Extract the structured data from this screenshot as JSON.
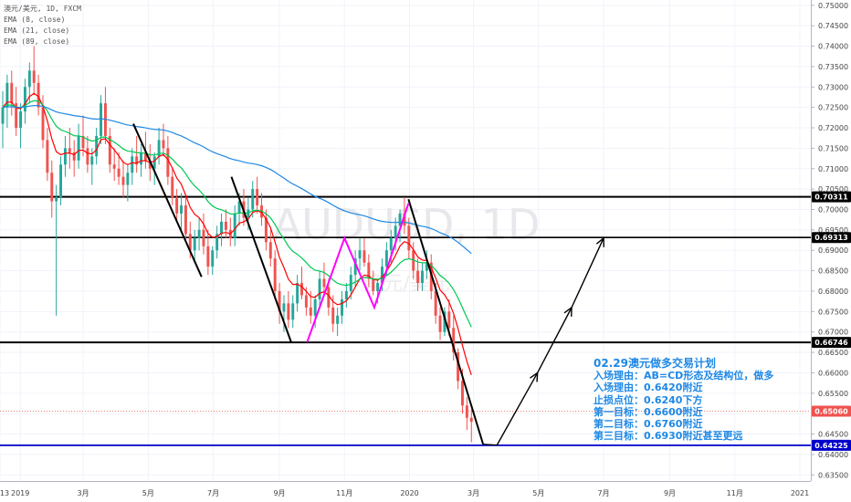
{
  "legend": {
    "symbol": "澳元/美元, 1D, FXCM",
    "ema1": "EMA (8, close)",
    "ema2": "EMA (21, close)",
    "ema3": "EMA (89, close)"
  },
  "watermark": {
    "main": "AUDUSD, 1D",
    "sub": "澳元/美元"
  },
  "plan": {
    "title": "02.29澳元做多交易计划",
    "lines": [
      "入场理由：AB=CD形态及结构位，做多",
      "入场理由：0.6420附近",
      "止损点位：0.6240下方",
      "第一目标：0.6600附近",
      "第二目标：0.6760附近",
      "第三目标：0.6930附近甚至更远"
    ]
  },
  "colors": {
    "up": "#26a69a",
    "down": "#ef5350",
    "ema8": "#ff0000",
    "ema21": "#00c853",
    "ema89": "#1e88e5",
    "pattern": "#ff00ff",
    "support": "#0000cc",
    "text_blue": "#1e88e5"
  },
  "chart_data": {
    "type": "candlestick",
    "ylim": [
      0.6335,
      0.7513
    ],
    "y_ticks": [
      "0.75000",
      "0.74500",
      "0.74000",
      "0.73500",
      "0.73000",
      "0.72500",
      "0.72000",
      "0.71500",
      "0.71000",
      "0.70500",
      "0.70000",
      "0.69500",
      "0.69000",
      "0.68500",
      "0.68000",
      "0.67500",
      "0.67000",
      "0.66500",
      "0.66000",
      "0.65500",
      "0.65000",
      "0.64500",
      "0.64000",
      "0.63500"
    ],
    "x_ticks": [
      "13",
      "2019",
      "3月",
      "5月",
      "7月",
      "9月",
      "11月",
      "2020",
      "3月",
      "5月",
      "7月",
      "9月",
      "11月",
      "2021"
    ],
    "horizontal_levels": [
      {
        "label": "0.70311",
        "value": 0.70311,
        "style": "black-thick"
      },
      {
        "label": "0.69313",
        "value": 0.69313,
        "style": "black"
      },
      {
        "label": "0.66746",
        "value": 0.66746,
        "style": "black-thick"
      },
      {
        "label": "0.65060",
        "value": 0.6506,
        "style": "red-dotted"
      },
      {
        "label": "0.64225",
        "value": 0.64225,
        "style": "blue"
      }
    ],
    "trend_lines": [
      {
        "from": [
          "2019-04-17",
          0.721
        ],
        "to": [
          "2019-06-20",
          0.6835
        ]
      },
      {
        "from": [
          "2019-07-18",
          0.708
        ],
        "to": [
          "2019-09-12",
          0.6675
        ]
      },
      {
        "from": [
          "2019-12-31",
          0.7025
        ],
        "to": [
          "2020-03-10",
          0.6425
        ]
      }
    ],
    "pattern_lines": [
      {
        "points": [
          [
            "2019-09-27",
            0.6675
          ],
          [
            "2019-11-01",
            0.693
          ],
          [
            "2019-11-29",
            0.676
          ],
          [
            "2019-12-31",
            0.7015
          ]
        ]
      }
    ],
    "projection": {
      "points": [
        [
          "2020-03-23",
          0.6423
        ],
        [
          "2020-04-30",
          0.66
        ],
        [
          "2020-06-01",
          0.676
        ],
        [
          "2020-07-01",
          0.693
        ]
      ]
    },
    "candles": [
      [
        0.721,
        0.729,
        0.715,
        0.725
      ],
      [
        0.725,
        0.733,
        0.72,
        0.731
      ],
      [
        0.731,
        0.734,
        0.723,
        0.726
      ],
      [
        0.726,
        0.73,
        0.718,
        0.72
      ],
      [
        0.72,
        0.726,
        0.715,
        0.724
      ],
      [
        0.724,
        0.732,
        0.721,
        0.73
      ],
      [
        0.73,
        0.736,
        0.726,
        0.734
      ],
      [
        0.734,
        0.74,
        0.728,
        0.731
      ],
      [
        0.731,
        0.733,
        0.723,
        0.725
      ],
      [
        0.725,
        0.728,
        0.715,
        0.717
      ],
      [
        0.717,
        0.72,
        0.707,
        0.709
      ],
      [
        0.709,
        0.712,
        0.698,
        0.702
      ],
      [
        0.702,
        0.706,
        0.674,
        0.703
      ],
      [
        0.703,
        0.713,
        0.701,
        0.711
      ],
      [
        0.711,
        0.718,
        0.708,
        0.715
      ],
      [
        0.715,
        0.72,
        0.71,
        0.714
      ],
      [
        0.714,
        0.717,
        0.708,
        0.712
      ],
      [
        0.712,
        0.721,
        0.71,
        0.718
      ],
      [
        0.718,
        0.723,
        0.713,
        0.715
      ],
      [
        0.715,
        0.718,
        0.709,
        0.711
      ],
      [
        0.711,
        0.715,
        0.706,
        0.713
      ],
      [
        0.713,
        0.72,
        0.711,
        0.718
      ],
      [
        0.718,
        0.728,
        0.716,
        0.726
      ],
      [
        0.726,
        0.73,
        0.716,
        0.718
      ],
      [
        0.718,
        0.72,
        0.709,
        0.711
      ],
      [
        0.711,
        0.715,
        0.707,
        0.71
      ],
      [
        0.71,
        0.714,
        0.706,
        0.708
      ],
      [
        0.708,
        0.712,
        0.703,
        0.706
      ],
      [
        0.706,
        0.711,
        0.702,
        0.709
      ],
      [
        0.709,
        0.715,
        0.706,
        0.713
      ],
      [
        0.713,
        0.718,
        0.709,
        0.711
      ],
      [
        0.711,
        0.716,
        0.708,
        0.714
      ],
      [
        0.714,
        0.719,
        0.71,
        0.712
      ],
      [
        0.712,
        0.716,
        0.707,
        0.71
      ],
      [
        0.71,
        0.714,
        0.706,
        0.713
      ],
      [
        0.713,
        0.72,
        0.711,
        0.717
      ],
      [
        0.717,
        0.721,
        0.713,
        0.715
      ],
      [
        0.715,
        0.718,
        0.706,
        0.708
      ],
      [
        0.708,
        0.71,
        0.701,
        0.703
      ],
      [
        0.703,
        0.705,
        0.697,
        0.699
      ],
      [
        0.699,
        0.704,
        0.695,
        0.701
      ],
      [
        0.701,
        0.703,
        0.692,
        0.694
      ],
      [
        0.694,
        0.697,
        0.688,
        0.69
      ],
      [
        0.69,
        0.695,
        0.687,
        0.693
      ],
      [
        0.693,
        0.698,
        0.69,
        0.695
      ],
      [
        0.695,
        0.699,
        0.689,
        0.691
      ],
      [
        0.691,
        0.695,
        0.684,
        0.686
      ],
      [
        0.686,
        0.691,
        0.684,
        0.69
      ],
      [
        0.69,
        0.696,
        0.688,
        0.694
      ],
      [
        0.694,
        0.699,
        0.691,
        0.697
      ],
      [
        0.697,
        0.7,
        0.693,
        0.695
      ],
      [
        0.695,
        0.698,
        0.691,
        0.693
      ],
      [
        0.693,
        0.701,
        0.691,
        0.699
      ],
      [
        0.699,
        0.704,
        0.696,
        0.702
      ],
      [
        0.702,
        0.705,
        0.696,
        0.698
      ],
      [
        0.698,
        0.703,
        0.695,
        0.7
      ],
      [
        0.7,
        0.707,
        0.698,
        0.705
      ],
      [
        0.705,
        0.708,
        0.699,
        0.701
      ],
      [
        0.701,
        0.704,
        0.696,
        0.698
      ],
      [
        0.698,
        0.7,
        0.69,
        0.692
      ],
      [
        0.692,
        0.695,
        0.686,
        0.688
      ],
      [
        0.688,
        0.69,
        0.678,
        0.68
      ],
      [
        0.68,
        0.682,
        0.672,
        0.675
      ],
      [
        0.675,
        0.679,
        0.67,
        0.677
      ],
      [
        0.677,
        0.68,
        0.671,
        0.673
      ],
      [
        0.673,
        0.679,
        0.671,
        0.677
      ],
      [
        0.677,
        0.684,
        0.675,
        0.682
      ],
      [
        0.682,
        0.686,
        0.678,
        0.679
      ],
      [
        0.679,
        0.681,
        0.674,
        0.676
      ],
      [
        0.676,
        0.68,
        0.672,
        0.674
      ],
      [
        0.674,
        0.679,
        0.671,
        0.678
      ],
      [
        0.678,
        0.685,
        0.676,
        0.683
      ],
      [
        0.683,
        0.687,
        0.679,
        0.681
      ],
      [
        0.681,
        0.683,
        0.674,
        0.676
      ],
      [
        0.676,
        0.679,
        0.67,
        0.672
      ],
      [
        0.672,
        0.676,
        0.669,
        0.674
      ],
      [
        0.674,
        0.68,
        0.672,
        0.678
      ],
      [
        0.678,
        0.682,
        0.676,
        0.68
      ],
      [
        0.68,
        0.686,
        0.678,
        0.684
      ],
      [
        0.684,
        0.69,
        0.681,
        0.688
      ],
      [
        0.688,
        0.693,
        0.685,
        0.69
      ],
      [
        0.69,
        0.693,
        0.686,
        0.687
      ],
      [
        0.687,
        0.689,
        0.681,
        0.683
      ],
      [
        0.683,
        0.685,
        0.679,
        0.68
      ],
      [
        0.68,
        0.683,
        0.677,
        0.682
      ],
      [
        0.682,
        0.688,
        0.68,
        0.686
      ],
      [
        0.686,
        0.692,
        0.684,
        0.69
      ],
      [
        0.69,
        0.695,
        0.687,
        0.693
      ],
      [
        0.693,
        0.698,
        0.69,
        0.696
      ],
      [
        0.696,
        0.7,
        0.692,
        0.699
      ],
      [
        0.699,
        0.703,
        0.694,
        0.696
      ],
      [
        0.696,
        0.698,
        0.688,
        0.69
      ],
      [
        0.69,
        0.692,
        0.683,
        0.685
      ],
      [
        0.685,
        0.688,
        0.68,
        0.682
      ],
      [
        0.682,
        0.687,
        0.68,
        0.685
      ],
      [
        0.685,
        0.69,
        0.683,
        0.687
      ],
      [
        0.687,
        0.689,
        0.678,
        0.68
      ],
      [
        0.68,
        0.682,
        0.672,
        0.674
      ],
      [
        0.674,
        0.676,
        0.668,
        0.67
      ],
      [
        0.67,
        0.676,
        0.669,
        0.675
      ],
      [
        0.675,
        0.678,
        0.669,
        0.671
      ],
      [
        0.671,
        0.674,
        0.663,
        0.665
      ],
      [
        0.665,
        0.666,
        0.656,
        0.658
      ],
      [
        0.658,
        0.661,
        0.65,
        0.652
      ],
      [
        0.652,
        0.654,
        0.646,
        0.649
      ],
      [
        0.649,
        0.651,
        0.643,
        0.648
      ]
    ]
  }
}
